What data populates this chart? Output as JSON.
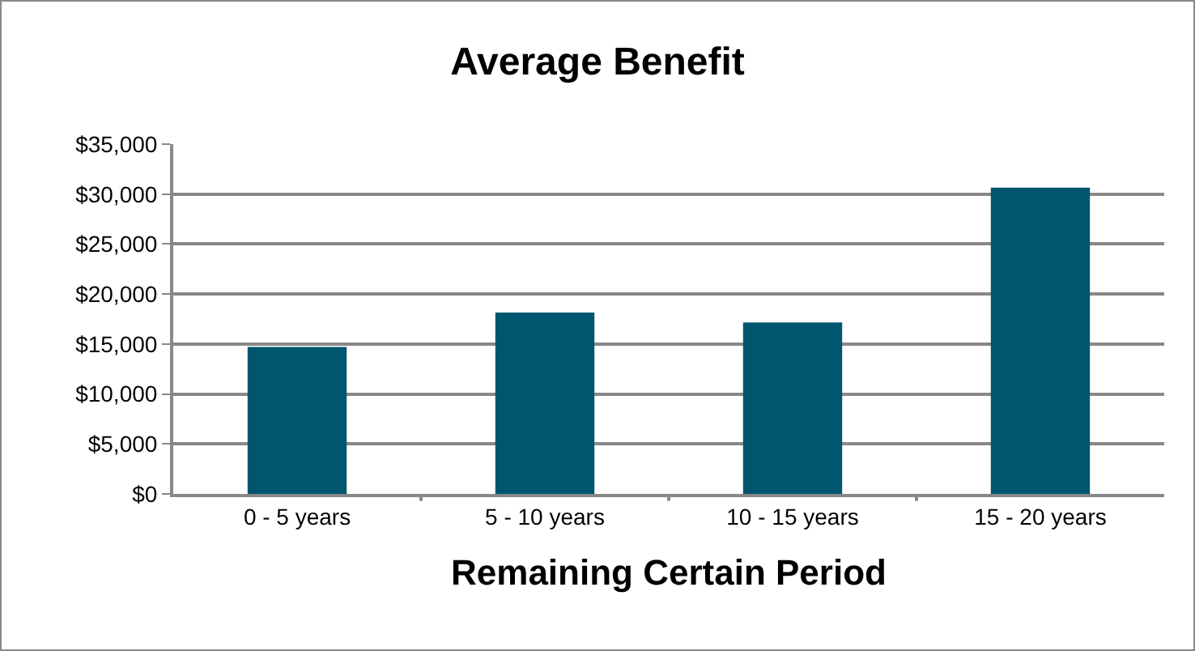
{
  "chart_data": {
    "type": "bar",
    "title": "Average Benefit",
    "xlabel": "Remaining Certain Period",
    "categories": [
      "0 - 5 years",
      "5 - 10 years",
      "10 - 15 years",
      "15 - 20 years"
    ],
    "values": [
      14700,
      18150,
      17150,
      30650
    ],
    "color": "#01566f",
    "ylim": [
      0,
      35000
    ],
    "yticks": [
      {
        "value": 0,
        "label": "$0"
      },
      {
        "value": 5000,
        "label": "$5,000"
      },
      {
        "value": 10000,
        "label": "$10,000"
      },
      {
        "value": 15000,
        "label": "$15,000"
      },
      {
        "value": 20000,
        "label": "$20,000"
      },
      {
        "value": 25000,
        "label": "$25,000"
      },
      {
        "value": 30000,
        "label": "$30,000"
      },
      {
        "value": 35000,
        "label": "$35,000"
      }
    ],
    "grid": "y",
    "legend": false
  }
}
